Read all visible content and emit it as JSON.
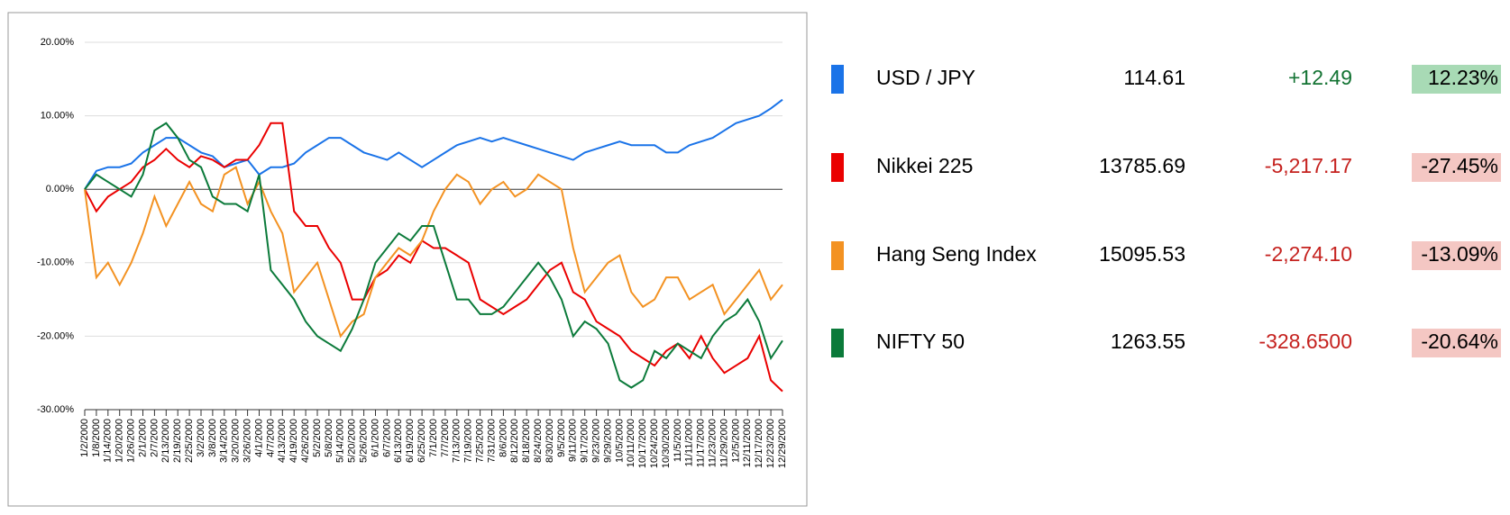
{
  "chart_data": {
    "type": "line",
    "categories": [
      "1/2/2000",
      "1/8/2000",
      "1/14/2000",
      "1/20/2000",
      "1/26/2000",
      "2/1/2000",
      "2/7/2000",
      "2/13/2000",
      "2/19/2000",
      "2/25/2000",
      "3/2/2000",
      "3/8/2000",
      "3/14/2000",
      "3/20/2000",
      "3/26/2000",
      "4/1/2000",
      "4/7/2000",
      "4/13/2000",
      "4/19/2000",
      "4/26/2000",
      "5/2/2000",
      "5/8/2000",
      "5/14/2000",
      "5/20/2000",
      "5/26/2000",
      "6/1/2000",
      "6/7/2000",
      "6/13/2000",
      "6/19/2000",
      "6/25/2000",
      "7/1/2000",
      "7/7/2000",
      "7/13/2000",
      "7/19/2000",
      "7/25/2000",
      "7/31/2000",
      "8/6/2000",
      "8/12/2000",
      "8/18/2000",
      "8/24/2000",
      "8/30/2000",
      "9/5/2000",
      "9/11/2000",
      "9/17/2000",
      "9/23/2000",
      "9/29/2000",
      "10/5/2000",
      "10/11/2000",
      "10/17/2000",
      "10/24/2000",
      "10/30/2000",
      "11/5/2000",
      "11/11/2000",
      "11/17/2000",
      "11/23/2000",
      "11/29/2000",
      "12/5/2000",
      "12/11/2000",
      "12/17/2000",
      "12/23/2000",
      "12/29/2000"
    ],
    "series": [
      {
        "name": "USD / JPY",
        "color": "#1a73e8",
        "values": [
          0,
          2.5,
          3,
          3,
          3.5,
          5,
          6,
          7,
          7,
          6,
          5,
          4.5,
          3,
          3.5,
          4,
          2,
          3,
          3,
          3.5,
          5,
          6,
          7,
          7,
          6,
          5,
          4.5,
          4,
          5,
          4,
          3,
          4,
          5,
          6,
          6.5,
          7,
          6.5,
          7,
          6.5,
          6,
          5.5,
          5,
          4.5,
          4,
          5,
          5.5,
          6,
          6.5,
          6,
          6,
          6,
          5,
          5,
          6,
          6.5,
          7,
          8,
          9,
          9.5,
          10,
          11,
          12.2
        ]
      },
      {
        "name": "Nikkei 225",
        "color": "#ea0000",
        "values": [
          0,
          -3,
          -1,
          0,
          1,
          3,
          4,
          5.5,
          4,
          3,
          4.5,
          4,
          3,
          4,
          4,
          6,
          9,
          9,
          -3,
          -5,
          -5,
          -8,
          -10,
          -15,
          -15,
          -12,
          -11,
          -9,
          -10,
          -7,
          -8,
          -8,
          -9,
          -10,
          -15,
          -16,
          -17,
          -16,
          -15,
          -13,
          -11,
          -10,
          -14,
          -15,
          -18,
          -19,
          -20,
          -22,
          -23,
          -24,
          -22,
          -21,
          -23,
          -20,
          -23,
          -25,
          -24,
          -23,
          -20,
          -26,
          -27.5
        ]
      },
      {
        "name": "Hang Seng Index",
        "color": "#f39222",
        "values": [
          0,
          -12,
          -10,
          -13,
          -10,
          -6,
          -1,
          -5,
          -2,
          1,
          -2,
          -3,
          2,
          3,
          -2,
          1,
          -3,
          -6,
          -14,
          -12,
          -10,
          -15,
          -20,
          -18,
          -17,
          -12,
          -10,
          -8,
          -9,
          -7,
          -3,
          0,
          2,
          1,
          -2,
          0,
          1,
          -1,
          0,
          2,
          1,
          0,
          -8,
          -14,
          -12,
          -10,
          -9,
          -14,
          -16,
          -15,
          -12,
          -12,
          -15,
          -14,
          -13,
          -17,
          -15,
          -13,
          -11,
          -15,
          -13
        ]
      },
      {
        "name": "NIFTY 50",
        "color": "#0b7a3a",
        "values": [
          0,
          2,
          1,
          0,
          -1,
          2,
          8,
          9,
          7,
          4,
          3,
          -1,
          -2,
          -2,
          -3,
          2,
          -11,
          -13,
          -15,
          -18,
          -20,
          -21,
          -22,
          -19,
          -15,
          -10,
          -8,
          -6,
          -7,
          -5,
          -5,
          -10,
          -15,
          -15,
          -17,
          -17,
          -16,
          -14,
          -12,
          -10,
          -12,
          -15,
          -20,
          -18,
          -19,
          -21,
          -26,
          -27,
          -26,
          -22,
          -23,
          -21,
          -22,
          -23,
          -20,
          -18,
          -17,
          -15,
          -18,
          -23,
          -20.6
        ]
      }
    ],
    "ylim": [
      -30,
      20
    ],
    "yticks": [
      {
        "value": -30,
        "label": "-30.00%"
      },
      {
        "value": -20,
        "label": "-20.00%"
      },
      {
        "value": -10,
        "label": "-10.00%"
      },
      {
        "value": 0,
        "label": "0.00%"
      },
      {
        "value": 10,
        "label": "10.00%"
      },
      {
        "value": 20,
        "label": "20.00%"
      }
    ],
    "grid": true,
    "table": [
      {
        "price": "114.61",
        "change": "+12.49",
        "percent": "12.23%",
        "up": true
      },
      {
        "price": "13785.69",
        "change": "-5,217.17",
        "percent": "-27.45%",
        "up": false
      },
      {
        "price": "15095.53",
        "change": "-2,274.10",
        "percent": "-13.09%",
        "up": false
      },
      {
        "price": "1263.55",
        "change": "-328.6500",
        "percent": "-20.64%",
        "up": false
      }
    ]
  }
}
